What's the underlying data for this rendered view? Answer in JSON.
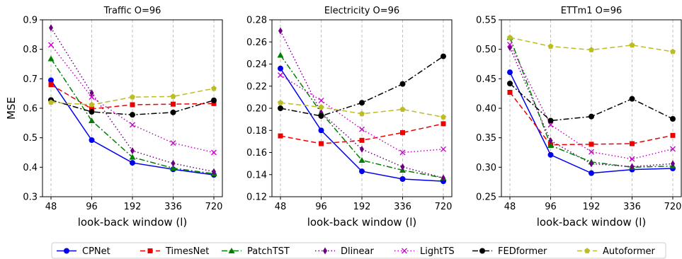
{
  "chart_data": [
    {
      "type": "line",
      "title": "Traffic O=96",
      "xlabel": "look-back window (l)",
      "ylabel": "MSE",
      "categories": [
        "48",
        "96",
        "192",
        "336",
        "720"
      ],
      "ylim": [
        0.3,
        0.9
      ],
      "yticks": [
        "0.3",
        "0.4",
        "0.5",
        "0.6",
        "0.7",
        "0.8",
        "0.9"
      ],
      "grid": "vertical dashed",
      "series": [
        {
          "name": "CPNet",
          "values": [
            0.695,
            0.492,
            0.415,
            0.393,
            0.374
          ]
        },
        {
          "name": "TimesNet",
          "values": [
            0.68,
            0.598,
            0.612,
            0.614,
            0.616
          ]
        },
        {
          "name": "PatchTST",
          "values": [
            0.768,
            0.558,
            0.434,
            0.397,
            0.378
          ]
        },
        {
          "name": "Dlinear",
          "values": [
            0.873,
            0.652,
            0.456,
            0.413,
            0.385
          ]
        },
        {
          "name": "LightTS",
          "values": [
            0.815,
            0.638,
            0.544,
            0.482,
            0.45
          ]
        },
        {
          "name": "FEDformer",
          "values": [
            0.628,
            0.588,
            0.578,
            0.586,
            0.627
          ]
        },
        {
          "name": "Autoformer",
          "values": [
            0.62,
            0.612,
            0.638,
            0.64,
            0.667
          ]
        }
      ]
    },
    {
      "type": "line",
      "title": "Electricity O=96",
      "xlabel": "look-back window (l)",
      "ylabel": "",
      "categories": [
        "48",
        "96",
        "192",
        "336",
        "720"
      ],
      "ylim": [
        0.12,
        0.28
      ],
      "yticks": [
        "0.12",
        "0.14",
        "0.16",
        "0.18",
        "0.20",
        "0.22",
        "0.24",
        "0.26",
        "0.28"
      ],
      "grid": "vertical dashed",
      "series": [
        {
          "name": "CPNet",
          "values": [
            0.236,
            0.18,
            0.143,
            0.136,
            0.134
          ]
        },
        {
          "name": "TimesNet",
          "values": [
            0.175,
            0.168,
            0.171,
            0.178,
            0.186
          ]
        },
        {
          "name": "PatchTST",
          "values": [
            0.248,
            0.196,
            0.153,
            0.144,
            0.137
          ]
        },
        {
          "name": "Dlinear",
          "values": [
            0.27,
            0.196,
            0.163,
            0.147,
            0.137
          ]
        },
        {
          "name": "LightTS",
          "values": [
            0.23,
            0.207,
            0.181,
            0.16,
            0.163
          ]
        },
        {
          "name": "FEDformer",
          "values": [
            0.2,
            0.193,
            0.205,
            0.222,
            0.247
          ]
        },
        {
          "name": "Autoformer",
          "values": [
            0.205,
            0.201,
            0.195,
            0.199,
            0.192
          ]
        }
      ]
    },
    {
      "type": "line",
      "title": "ETTm1 O=96",
      "xlabel": "look-back window (l)",
      "ylabel": "",
      "categories": [
        "48",
        "96",
        "192",
        "336",
        "720"
      ],
      "ylim": [
        0.25,
        0.55
      ],
      "yticks": [
        "0.25",
        "0.30",
        "0.35",
        "0.40",
        "0.45",
        "0.50",
        "0.55"
      ],
      "grid": "vertical dashed",
      "series": [
        {
          "name": "CPNet",
          "values": [
            0.461,
            0.321,
            0.29,
            0.296,
            0.298
          ]
        },
        {
          "name": "TimesNet",
          "values": [
            0.427,
            0.338,
            0.339,
            0.34,
            0.354
          ]
        },
        {
          "name": "PatchTST",
          "values": [
            0.52,
            0.337,
            0.309,
            0.3,
            0.302
          ]
        },
        {
          "name": "Dlinear",
          "values": [
            0.503,
            0.345,
            0.306,
            0.301,
            0.306
          ]
        },
        {
          "name": "LightTS",
          "values": [
            0.508,
            0.372,
            0.326,
            0.314,
            0.331
          ]
        },
        {
          "name": "FEDformer",
          "values": [
            0.442,
            0.379,
            0.386,
            0.416,
            0.382
          ]
        },
        {
          "name": "Autoformer",
          "values": [
            0.52,
            0.505,
            0.499,
            0.507,
            0.496
          ]
        }
      ]
    }
  ],
  "legend": {
    "placement": "bottom-center",
    "entries": [
      {
        "name": "CPNet",
        "color": "#0000ee",
        "line": "solid",
        "marker": "circle"
      },
      {
        "name": "TimesNet",
        "color": "#ee0000",
        "line": "dashed",
        "marker": "square"
      },
      {
        "name": "PatchTST",
        "color": "#008000",
        "line": "dashdot",
        "marker": "triangle"
      },
      {
        "name": "Dlinear",
        "color": "#6a0080",
        "line": "dotted",
        "marker": "diamond"
      },
      {
        "name": "LightTS",
        "color": "#cc00cc",
        "line": "dotted",
        "marker": "x"
      },
      {
        "name": "FEDformer",
        "color": "#000000",
        "line": "dashdot",
        "marker": "circle"
      },
      {
        "name": "Autoformer",
        "color": "#bcbd22",
        "line": "dashed",
        "marker": "pentagon"
      }
    ]
  }
}
